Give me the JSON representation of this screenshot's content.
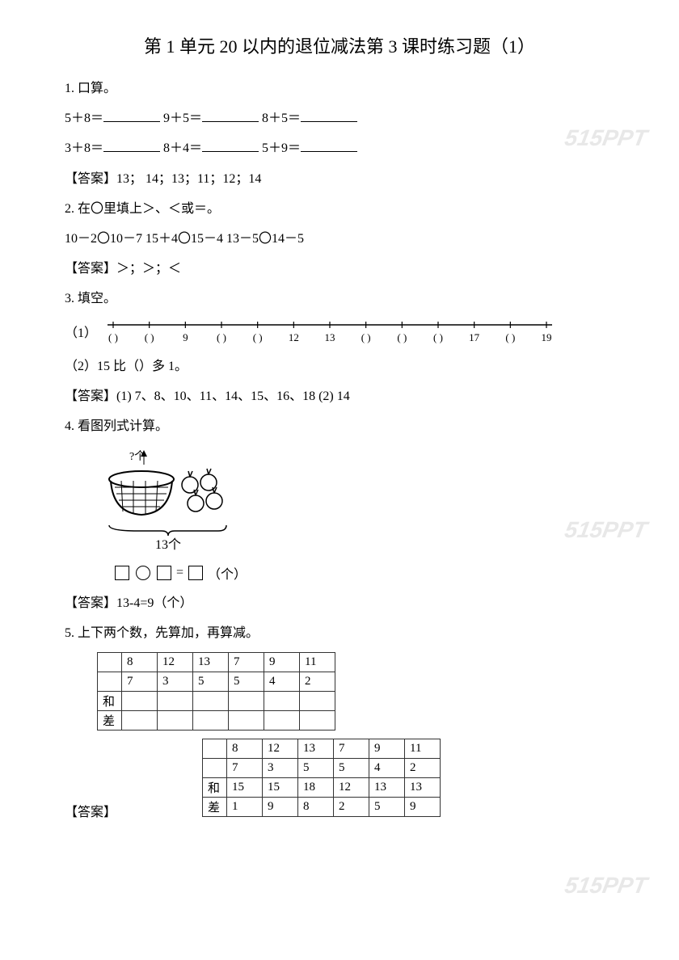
{
  "title": "第 1 单元 20 以内的退位减法第 3 课时练习题（1）",
  "watermark": "515PPT",
  "q1": {
    "label": "1.  口算。",
    "row1": [
      "5＋8＝",
      "9＋5＝",
      "8＋5＝"
    ],
    "row2": [
      "3＋8＝",
      "8＋4＝",
      "5＋9＝"
    ],
    "answer": "【答案】13；  14；13；11；12；14"
  },
  "q2": {
    "label": "2.  在〇里填上＞、＜或＝。",
    "expr": "10－2〇10－7        15＋4〇15－4        13－5〇14－5",
    "answer": "【答案】＞；＞；＜"
  },
  "q3": {
    "label": "3.  填空。",
    "sub1_label": "（1）",
    "ticks": [
      "(  )",
      "(  )",
      "9",
      "(  )",
      "(  )",
      "12",
      "13",
      "(  )",
      "(  )",
      "(  )",
      "17",
      "(  )",
      "19"
    ],
    "sub2": "（2）15 比（）多 1。",
    "answer": "【答案】(1) 7、8、10、11、14、15、16、18    (2) 14"
  },
  "q4": {
    "label": "4.  看图列式计算。",
    "figure_qmark": "?个",
    "figure_total": "13个",
    "eq_tail": "（个）",
    "answer": "【答案】13-4=9（个）"
  },
  "q5": {
    "label": "5.  上下两个数，先算加，再算减。",
    "table1": {
      "rows": [
        [
          "",
          "8",
          "12",
          "13",
          "7",
          "9",
          "11"
        ],
        [
          "",
          "7",
          "3",
          "5",
          "5",
          "4",
          "2"
        ],
        [
          "和",
          "",
          "",
          "",
          "",
          "",
          ""
        ],
        [
          "差",
          "",
          "",
          "",
          "",
          "",
          ""
        ]
      ]
    },
    "answer_label": "【答案】",
    "table2": {
      "rows": [
        [
          "",
          "8",
          "12",
          "13",
          "7",
          "9",
          "11"
        ],
        [
          "",
          "7",
          "3",
          "5",
          "5",
          "4",
          "2"
        ],
        [
          "和",
          "15",
          "15",
          "18",
          "12",
          "13",
          "13"
        ],
        [
          "差",
          "1",
          "9",
          "8",
          "2",
          "5",
          "9"
        ]
      ]
    }
  },
  "colors": {
    "text": "#000000",
    "bg": "#ffffff",
    "watermark": "#e8e8e8",
    "border": "#333333"
  }
}
